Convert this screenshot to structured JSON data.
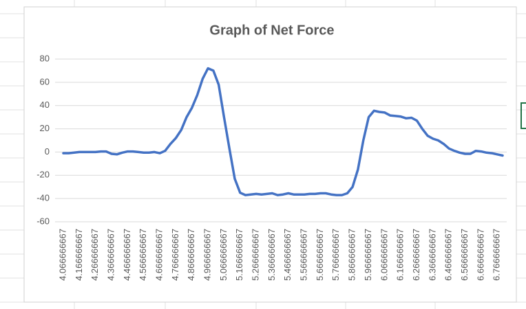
{
  "chart_data": {
    "type": "line",
    "title": "Graph of Net Force",
    "categories": [
      "4.066666667",
      null,
      null,
      "4.166666667",
      null,
      null,
      "4.266666667",
      null,
      null,
      "4.366666667",
      null,
      null,
      "4.466666667",
      null,
      null,
      "4.566666667",
      null,
      null,
      "4.666666667",
      null,
      null,
      "4.766666667",
      null,
      null,
      "4.866666667",
      null,
      null,
      "4.966666667",
      null,
      null,
      "5.066666667",
      null,
      null,
      "5.166666667",
      null,
      null,
      "5.266666667",
      null,
      null,
      "5.366666667",
      null,
      null,
      "5.466666667",
      null,
      null,
      "5.566666667",
      null,
      null,
      "5.666666667",
      null,
      null,
      "5.766666667",
      null,
      null,
      "5.866666667",
      null,
      null,
      "5.966666667",
      null,
      null,
      "6.066666667",
      null,
      null,
      "6.166666667",
      null,
      null,
      "6.266666667",
      null,
      null,
      "6.366666667",
      null,
      null,
      "6.466666667",
      null,
      null,
      "6.566666667",
      null,
      null,
      "6.666666667",
      null,
      null,
      "6.766666667",
      null
    ],
    "values": [
      -1,
      -1,
      -0.5,
      0,
      0,
      0,
      0,
      0.5,
      0.5,
      -1.5,
      -2,
      -0.5,
      0.5,
      0.5,
      0,
      -0.5,
      -0.5,
      0,
      -1,
      1,
      7,
      12,
      19,
      30,
      38,
      49,
      63,
      72,
      70,
      58,
      30,
      3,
      -23,
      -35,
      -37,
      -36.5,
      -36,
      -36.5,
      -36,
      -35.5,
      -37,
      -36.5,
      -35.5,
      -36.5,
      -36.5,
      -36.5,
      -36,
      -36,
      -35.5,
      -35.5,
      -36.5,
      -37,
      -37,
      -35.5,
      -30,
      -15,
      10,
      30,
      35.5,
      34.5,
      34,
      31.5,
      31,
      30.5,
      29,
      29.5,
      27,
      20,
      14,
      11.5,
      10,
      7,
      3,
      1,
      -0.5,
      -1.5,
      -1.5,
      1,
      0.5,
      -0.5,
      -1,
      -2,
      -3
    ],
    "color": "#4472c4",
    "ylim": [
      -60,
      80
    ],
    "yticks": [
      -60,
      -40,
      -20,
      0,
      20,
      40,
      60,
      80
    ],
    "grid": true
  }
}
